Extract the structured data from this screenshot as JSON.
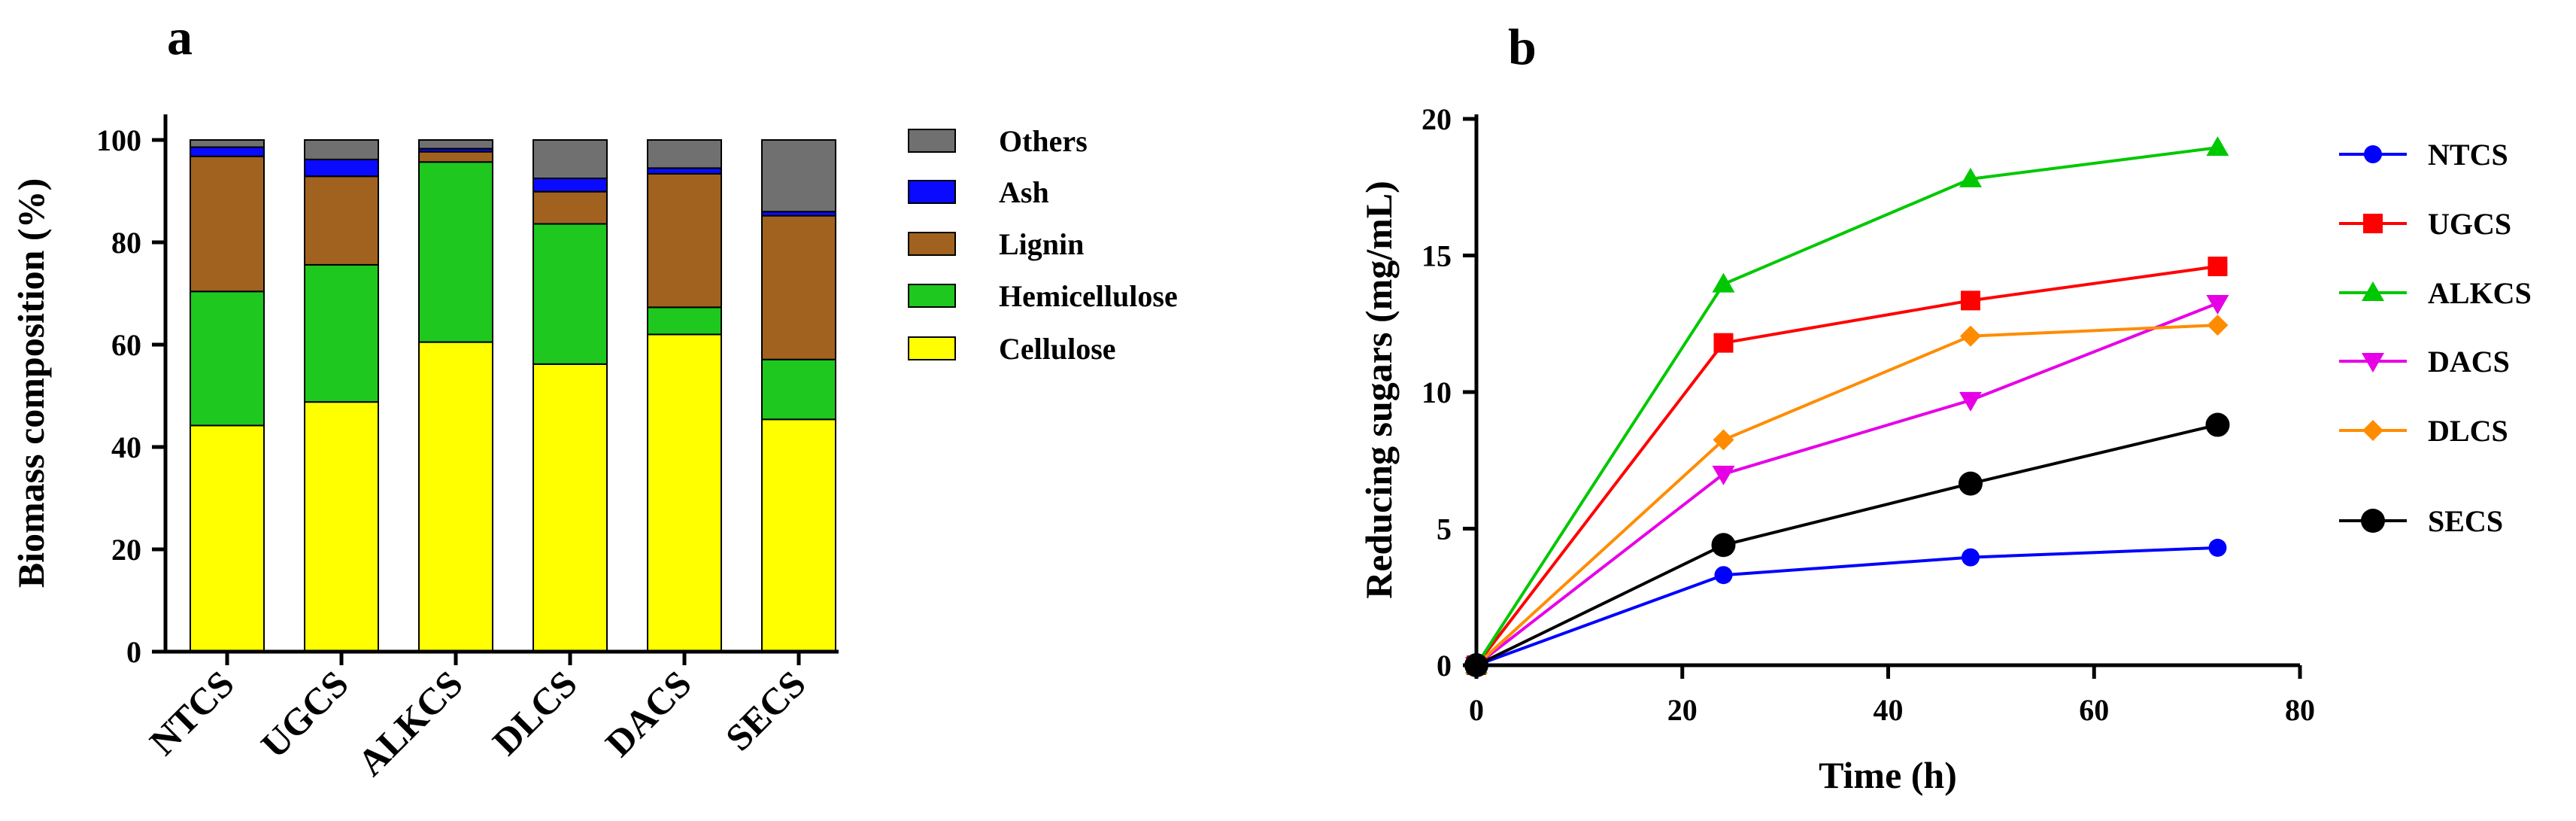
{
  "chart_data": [
    {
      "panel": "a",
      "type": "bar",
      "stacked": true,
      "title": "",
      "xlabel": "",
      "ylabel": "Biomass composition (%)",
      "ylim": [
        0,
        105
      ],
      "yticks": [
        0,
        20,
        40,
        60,
        80,
        100
      ],
      "categories": [
        "NTCS",
        "UGCS",
        "ALKCS",
        "DLCS",
        "DACS",
        "SECS"
      ],
      "series": [
        {
          "name": "Cellulose",
          "color": "#ffff00",
          "values": [
            44.2,
            48.8,
            60.5,
            56.2,
            62.0,
            45.4
          ]
        },
        {
          "name": "Hemicellulose",
          "color": "#1ec81e",
          "values": [
            26.2,
            26.8,
            35.2,
            27.4,
            5.3,
            11.7
          ]
        },
        {
          "name": "Lignin",
          "color": "#a0621e",
          "values": [
            26.4,
            17.3,
            2.0,
            6.3,
            26.1,
            28.1
          ]
        },
        {
          "name": "Ash",
          "color": "#0a0aff",
          "values": [
            1.8,
            3.3,
            0.6,
            2.6,
            1.1,
            0.8
          ]
        },
        {
          "name": "Others",
          "color": "#707070",
          "values": [
            1.4,
            3.8,
            1.7,
            7.5,
            5.5,
            14.0
          ]
        }
      ],
      "legend_order": [
        "Others",
        "Ash",
        "Lignin",
        "Hemicellulose",
        "Cellulose"
      ],
      "legend": "right"
    },
    {
      "panel": "b",
      "type": "line",
      "title": "",
      "xlabel": "Time (h)",
      "ylabel": "Reducing sugars (mg/mL)",
      "xlim": [
        0,
        80
      ],
      "ylim": [
        0,
        20
      ],
      "xticks": [
        0,
        20,
        40,
        60,
        80
      ],
      "yticks": [
        0,
        5,
        10,
        15,
        20
      ],
      "x": [
        0,
        24,
        48,
        72
      ],
      "series": [
        {
          "name": "NTCS",
          "color": "#0000ff",
          "marker": "circle",
          "values": [
            0,
            3.3,
            3.95,
            4.3
          ]
        },
        {
          "name": "UGCS",
          "color": "#ff0000",
          "marker": "square",
          "values": [
            0,
            11.8,
            13.35,
            14.6
          ]
        },
        {
          "name": "ALKCS",
          "color": "#00c800",
          "marker": "triangle-up",
          "values": [
            0,
            13.95,
            17.8,
            18.95
          ]
        },
        {
          "name": "DACS",
          "color": "#e600e6",
          "marker": "triangle-down",
          "values": [
            0,
            7.0,
            9.7,
            13.25
          ]
        },
        {
          "name": "DLCS",
          "color": "#ff8c00",
          "marker": "diamond",
          "values": [
            0,
            8.25,
            12.05,
            12.45
          ]
        },
        {
          "name": "SECS",
          "color": "#000000",
          "marker": "big-circle",
          "values": [
            0,
            4.4,
            6.65,
            8.8
          ]
        }
      ],
      "legend": "right"
    }
  ],
  "labels": {
    "panel_a": "a",
    "panel_b": "b"
  }
}
